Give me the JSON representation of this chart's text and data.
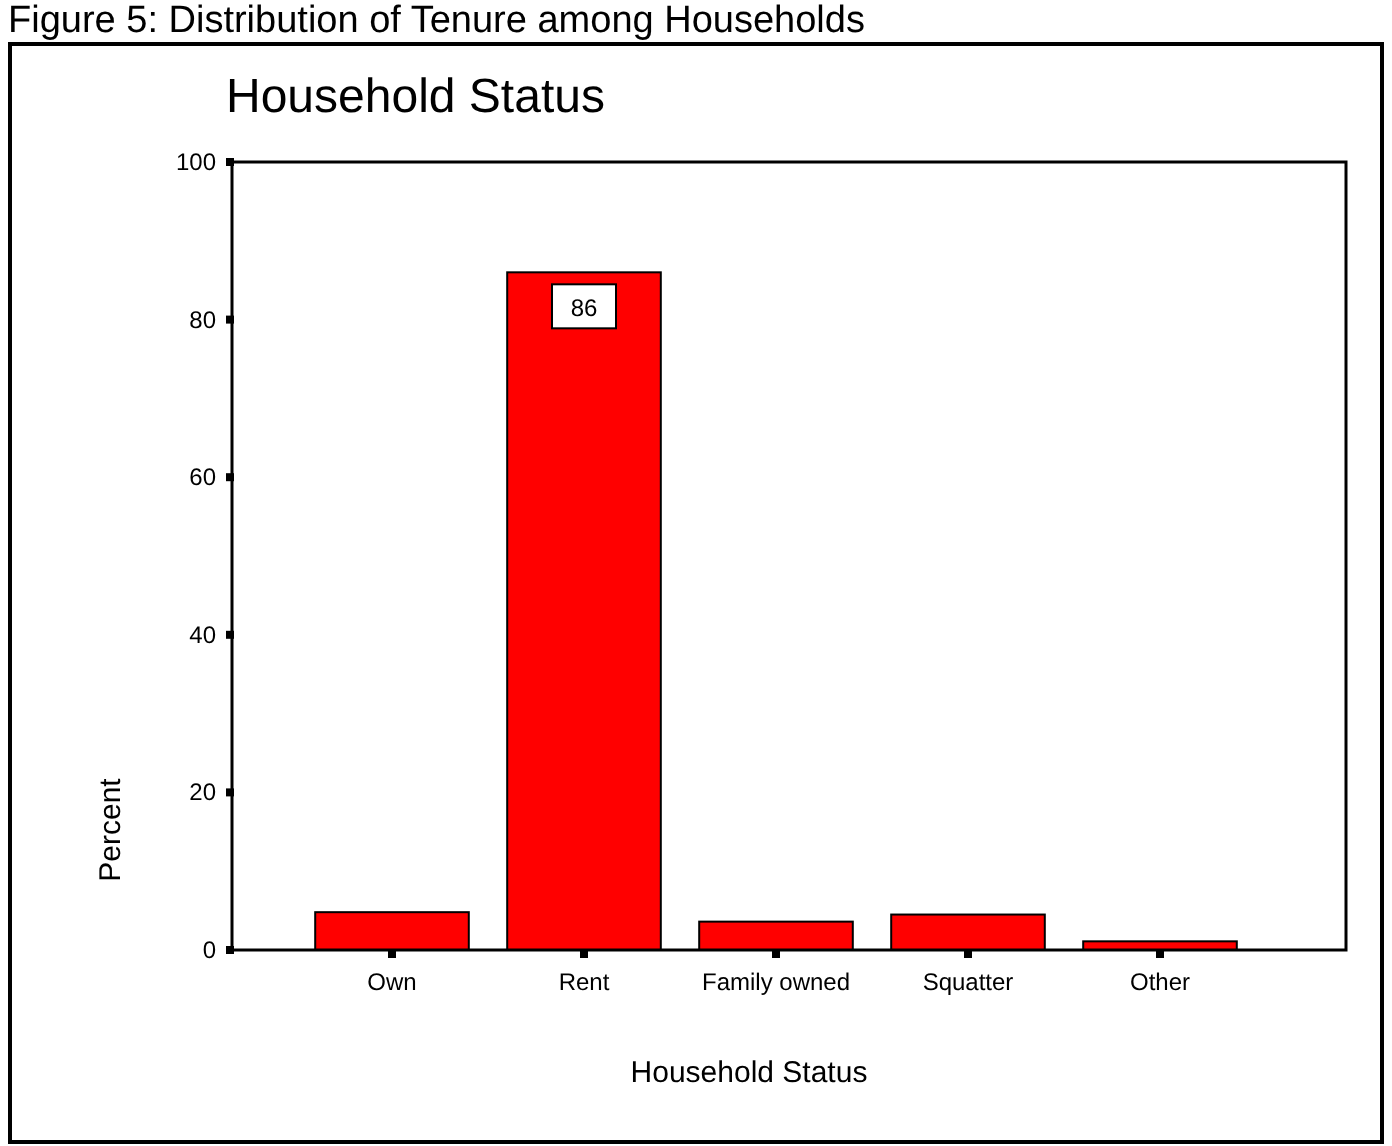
{
  "chart_data": {
    "type": "bar",
    "title": "Figure 5: Distribution of Tenure among Households",
    "subtitle": "Household Status",
    "xlabel": "Household Status",
    "ylabel": "Percent",
    "categories": [
      "Own",
      "Rent",
      "Family owned",
      "Squatter",
      "Other"
    ],
    "values": [
      4.8,
      86,
      3.6,
      4.5,
      1.1
    ],
    "value_labels": [
      null,
      "86",
      null,
      null,
      null
    ],
    "color": "#ff0000",
    "ylim": [
      0,
      100
    ],
    "yticks": [
      0,
      20,
      40,
      60,
      80,
      100
    ],
    "grid": false
  }
}
